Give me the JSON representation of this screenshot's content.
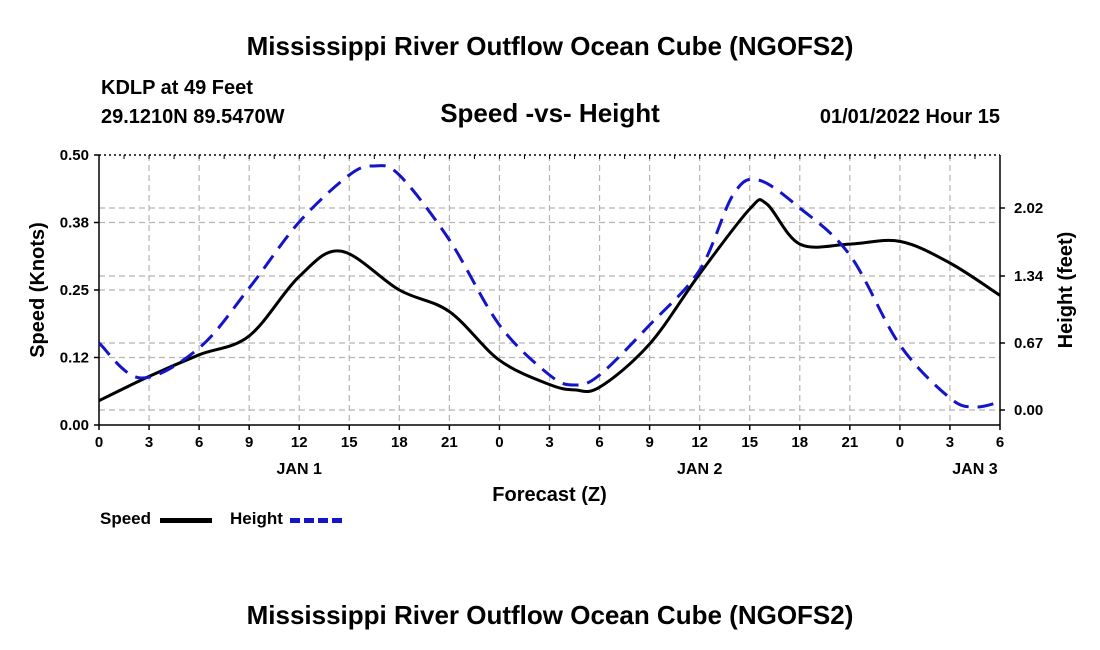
{
  "header": {
    "title": "Mississippi River Outflow Ocean Cube (NGOFS2)",
    "station": "KDLP at 49 Feet",
    "coords": "29.1210N  89.5470W",
    "subtitle": "Speed -vs- Height",
    "timestamp": "01/01/2022 Hour 15"
  },
  "footer": {
    "title": "Mississippi River Outflow Ocean Cube (NGOFS2)"
  },
  "legend": {
    "speed_label": "Speed",
    "height_label": "Height"
  },
  "colors": {
    "speed": "#000000",
    "height": "#1414c8",
    "grid": "#b4b4b4"
  },
  "chart_data": {
    "type": "line",
    "title": "Speed -vs- Height",
    "xlabel": "Forecast (Z)",
    "ylabel": "Speed (Knots)",
    "y2label": "Height (feet)",
    "x_range_hours": [
      0,
      54
    ],
    "x_ticks": {
      "hours": [
        0,
        3,
        6,
        9,
        12,
        15,
        18,
        21,
        24,
        27,
        30,
        33,
        36,
        39,
        42,
        45,
        48,
        51,
        54
      ],
      "labels": [
        "0",
        "3",
        "6",
        "9",
        "12",
        "15",
        "18",
        "21",
        "0",
        "3",
        "6",
        "9",
        "12",
        "15",
        "18",
        "21",
        "0",
        "3",
        "6"
      ]
    },
    "date_labels": [
      {
        "hour": 12,
        "label": "JAN 1"
      },
      {
        "hour": 36,
        "label": "JAN 2"
      },
      {
        "hour": 52.5,
        "label": "JAN 3"
      }
    ],
    "ylim": [
      0,
      0.5
    ],
    "y_ticks": {
      "values": [
        0,
        0.125,
        0.25,
        0.375,
        0.5
      ],
      "labels": [
        "0.00",
        "0.12",
        "0.25",
        "0.38",
        "0.50"
      ]
    },
    "y2lim": [
      -0.15,
      2.55
    ],
    "y2_ticks": {
      "values": [
        0,
        0.67,
        1.34,
        2.02
      ],
      "labels": [
        "0.00",
        "0.67",
        "1.34",
        "2.02"
      ]
    },
    "grid": true,
    "series": [
      {
        "name": "Speed",
        "axis": "left",
        "style": "solid",
        "x": [
          0,
          3,
          6,
          9,
          12,
          14.5,
          18,
          21,
          24,
          27,
          28.5,
          30,
          33,
          36,
          39,
          40,
          42,
          45,
          48,
          51,
          54
        ],
        "values": [
          0.045,
          0.09,
          0.13,
          0.165,
          0.275,
          0.322,
          0.25,
          0.21,
          0.12,
          0.075,
          0.065,
          0.07,
          0.15,
          0.28,
          0.4,
          0.41,
          0.335,
          0.335,
          0.34,
          0.3,
          0.24
        ]
      },
      {
        "name": "Height",
        "axis": "right",
        "style": "dashed",
        "x": [
          0,
          2.5,
          6,
          9,
          12,
          15,
          16.5,
          18,
          21,
          24,
          27,
          28.5,
          30,
          33,
          36,
          38,
          39.5,
          42,
          45,
          48,
          51,
          52.5,
          54
        ],
        "values": [
          0.67,
          0.32,
          0.62,
          1.22,
          1.88,
          2.35,
          2.44,
          2.35,
          1.7,
          0.85,
          0.35,
          0.25,
          0.35,
          0.85,
          1.4,
          2.15,
          2.3,
          2.02,
          1.55,
          0.65,
          0.12,
          0.03,
          0.08
        ]
      }
    ]
  }
}
